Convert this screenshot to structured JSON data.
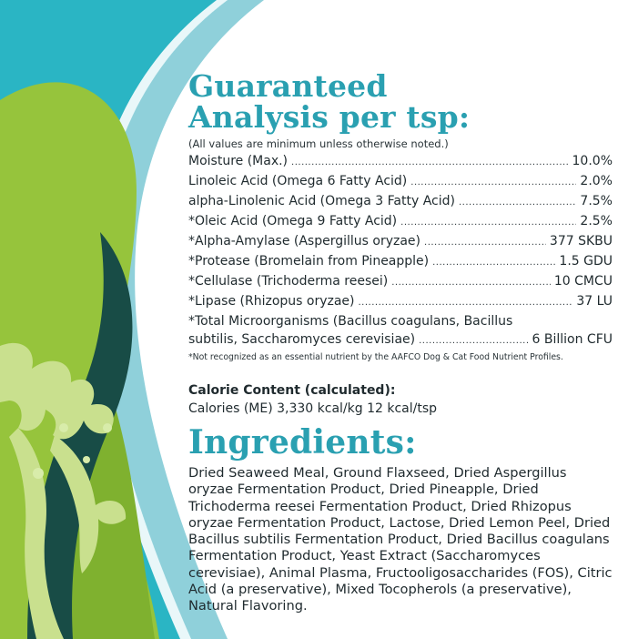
{
  "colors": {
    "teal_heading": "#2aa0b1",
    "teal_bg": "#2ab5c4",
    "light_blue_stripe": "#8fd0da",
    "lime_leaf": "#96c43c",
    "dark_leaf": "#184c46",
    "pale_seaweed": "#c9e08e"
  },
  "analysis": {
    "title_line1": "Guaranteed",
    "title_line2": "Analysis per tsp:",
    "note": "(All values are minimum unless otherwise noted.)",
    "rows": [
      {
        "label": "Moisture (Max.)",
        "value": "10.0%"
      },
      {
        "label": "Linoleic Acid (Omega 6 Fatty Acid)",
        "value": "2.0%"
      },
      {
        "label": "alpha-Linolenic Acid (Omega 3 Fatty Acid)",
        "value": "7.5%"
      },
      {
        "label": "*Oleic Acid (Omega 9 Fatty Acid)",
        "value": "2.5%"
      },
      {
        "label": "*Alpha-Amylase (Aspergillus oryzae)",
        "value": "377 SKBU"
      },
      {
        "label": "*Protease (Bromelain from Pineapple)",
        "value": "1.5 GDU"
      },
      {
        "label": "*Cellulase (Trichoderma reesei)",
        "value": "10 CMCU"
      },
      {
        "label": "*Lipase (Rhizopus oryzae)",
        "value": "37 LU"
      }
    ],
    "microorganisms_line1": "*Total Microorganisms (Bacillus coagulans, Bacillus",
    "microorganisms_line2": "subtilis, Saccharomyces cerevisiae)",
    "microorganisms_value": "6 Billion CFU",
    "footnote": "*Not recognized as an essential nutrient by the AAFCO Dog & Cat Food Nutrient Profiles."
  },
  "calorie": {
    "heading": "Calorie Content (calculated):",
    "line": "Calories (ME) 3,330 kcal/kg 12 kcal/tsp"
  },
  "ingredients": {
    "title": "Ingredients:",
    "text": "Dried Seaweed Meal, Ground Flaxseed, Dried Aspergillus oryzae Fermentation Product, Dried Pineapple, Dried Trichoderma reesei Fermentation Product, Dried Rhizopus oryzae Fermentation Product, Lactose, Dried Lemon Peel, Dried Bacillus subtilis Fermentation Product, Dried Bacillus coagulans Fermentation Product, Yeast Extract (Saccharomyces cerevisiae), Animal Plasma, Fructooligosaccharides (FOS), Citric Acid (a preservative), Mixed Tocopherols (a preservative), Natural Flavoring."
  }
}
